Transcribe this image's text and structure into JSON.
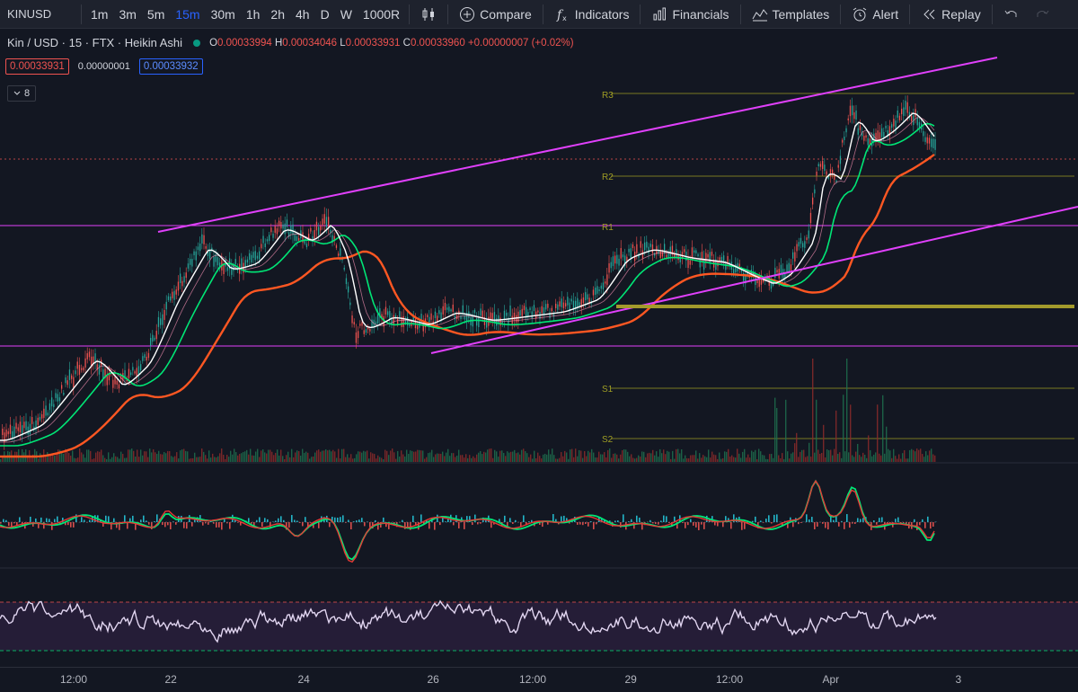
{
  "toolbar": {
    "symbol": "KINUSD",
    "intervals": [
      "1m",
      "3m",
      "5m",
      "15m",
      "30m",
      "1h",
      "2h",
      "4h",
      "D",
      "W",
      "1000R"
    ],
    "active_interval": "15m",
    "compare": "Compare",
    "indicators": "Indicators",
    "financials": "Financials",
    "templates": "Templates",
    "alert": "Alert",
    "replay": "Replay"
  },
  "legend": {
    "title": "Kin / USD · 15 · FTX · Heikin Ashi",
    "o_label": "O",
    "o": "0.00033994",
    "h_label": "H",
    "h": "0.00034046",
    "l_label": "L",
    "l": "0.00033931",
    "c_label": "C",
    "c": "0.00033960",
    "change": "+0.00000007 (+0.02%)"
  },
  "price_boxes": {
    "bid": "0.00033931",
    "spread": "0.00000001",
    "ask": "0.00033932"
  },
  "collapse_count": "8",
  "pivots": {
    "r3": "R3",
    "r2": "R2",
    "r1": "R1",
    "s1": "S1",
    "s2": "S2"
  },
  "x_axis": {
    "labels": [
      "12:00",
      "22",
      "24",
      "26",
      "12:00",
      "29",
      "12:00",
      "Apr",
      "3"
    ]
  },
  "colors": {
    "background": "#131722",
    "channel": "#e040fb",
    "pivot": "#9e9d24",
    "support": "#a39a2c",
    "ema_fast": "#ffffff",
    "ema_mid": "#00e676",
    "ema_slow": "#ff5722",
    "up": "#26a69a",
    "down": "#ef5350",
    "rsi_line": "#e1d5f0",
    "rsi_band": "#2a1f3d",
    "active": "#2962ff"
  }
}
